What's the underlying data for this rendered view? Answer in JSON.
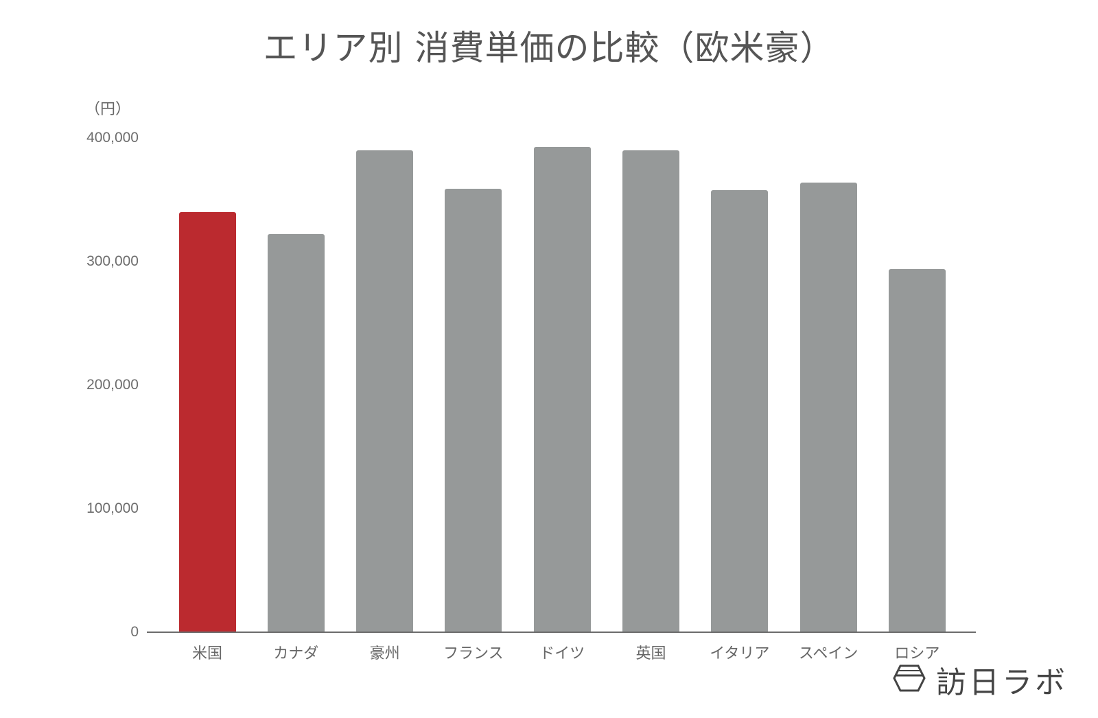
{
  "chart_data": {
    "type": "bar",
    "title": "エリア別 消費単価の比較（欧米豪）",
    "xlabel": "",
    "ylabel": "（円）",
    "ylim": [
      0,
      400000
    ],
    "yticks": [
      "0",
      "100,000",
      "200,000",
      "300,000",
      "400,000"
    ],
    "ytick_values": [
      0,
      100000,
      200000,
      300000,
      400000
    ],
    "grid": false,
    "legend": "none",
    "categories": [
      "米国",
      "カナダ",
      "豪州",
      "フランス",
      "ドイツ",
      "英国",
      "イタリア",
      "スペイン",
      "ロシア"
    ],
    "values": [
      340000,
      322000,
      390000,
      359000,
      393000,
      390000,
      358000,
      364000,
      294000
    ],
    "colors": [
      "#bb2a2f",
      "#969999",
      "#969999",
      "#969999",
      "#969999",
      "#969999",
      "#969999",
      "#969999",
      "#969999"
    ],
    "highlight_color": "#bb2a2f",
    "bar_color": "#969999"
  },
  "logo": {
    "text": "訪日ラボ",
    "icon": "hexagon-logo-icon"
  }
}
